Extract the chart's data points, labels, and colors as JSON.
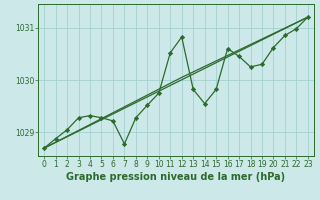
{
  "title": "Graphe pression niveau de la mer (hPa)",
  "x_values": [
    0,
    1,
    2,
    3,
    4,
    5,
    6,
    7,
    8,
    9,
    10,
    11,
    12,
    13,
    14,
    15,
    16,
    17,
    18,
    19,
    20,
    21,
    22,
    23
  ],
  "line1_y": [
    1028.7,
    1028.88,
    1029.05,
    1029.28,
    1029.32,
    1029.28,
    1029.22,
    1028.78,
    1029.28,
    1029.52,
    1029.75,
    1030.52,
    1030.82,
    1029.82,
    1029.55,
    1029.82,
    1030.6,
    1030.45,
    1030.25,
    1030.3,
    1030.62,
    1030.85,
    1030.98,
    1031.2
  ],
  "trend1_x": [
    0,
    23
  ],
  "trend1_y": [
    1028.7,
    1031.2
  ],
  "trend2_x": [
    0,
    12,
    23
  ],
  "trend2_y": [
    1028.7,
    1030.05,
    1031.2
  ],
  "line_color": "#2d6a2d",
  "bg_color": "#cce8e8",
  "grid_color": "#9ecece",
  "yticks": [
    1029,
    1030,
    1031
  ],
  "xticks": [
    0,
    1,
    2,
    3,
    4,
    5,
    6,
    7,
    8,
    9,
    10,
    11,
    12,
    13,
    14,
    15,
    16,
    17,
    18,
    19,
    20,
    21,
    22,
    23
  ],
  "xlim": [
    -0.5,
    23.5
  ],
  "ylim": [
    1028.55,
    1031.45
  ],
  "title_fontsize": 7.0,
  "tick_fontsize": 5.5,
  "marker": "D",
  "marker_size": 2.2,
  "linewidth": 0.9
}
